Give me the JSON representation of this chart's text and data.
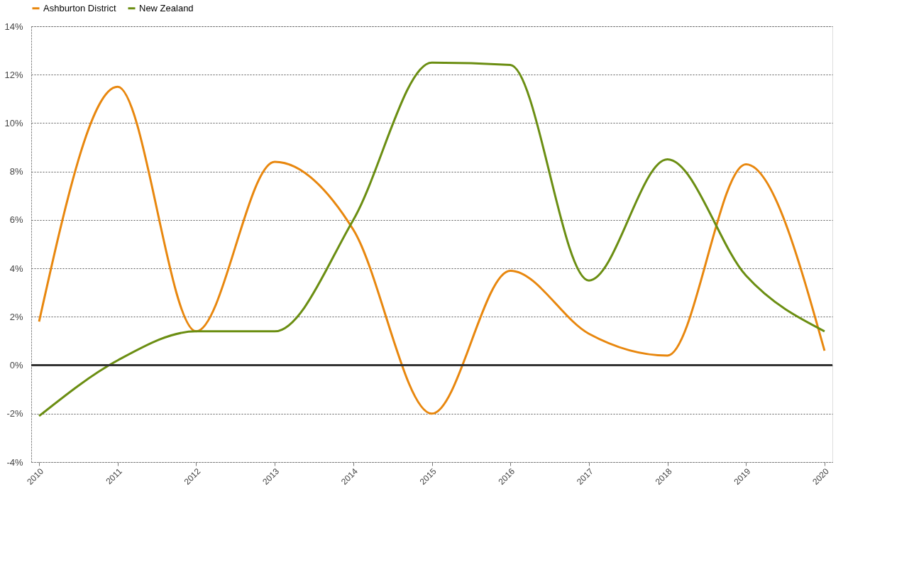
{
  "chart_data": {
    "type": "line",
    "categories": [
      "2010",
      "2011",
      "2012",
      "2013",
      "2014",
      "2015",
      "2016",
      "2017",
      "2018",
      "2019",
      "2020"
    ],
    "series": [
      {
        "name": "Ashburton District",
        "color": "#e8870e",
        "values": [
          1.8,
          11.5,
          1.4,
          8.4,
          5.6,
          -2.0,
          3.9,
          1.3,
          0.4,
          8.3,
          0.6
        ]
      },
      {
        "name": "New Zealand",
        "color": "#6b8e12",
        "values": [
          -2.1,
          0.2,
          1.4,
          1.4,
          6.0,
          12.5,
          12.4,
          3.5,
          8.5,
          3.7,
          1.4
        ]
      }
    ],
    "ylim": [
      -4,
      14
    ],
    "yticks": [
      {
        "value": -4,
        "label": "-4%"
      },
      {
        "value": -2,
        "label": "-2%"
      },
      {
        "value": 0,
        "label": "0%"
      },
      {
        "value": 2,
        "label": "2%"
      },
      {
        "value": 4,
        "label": "4%"
      },
      {
        "value": 6,
        "label": "6%"
      },
      {
        "value": 8,
        "label": "8%"
      },
      {
        "value": 10,
        "label": "10%"
      },
      {
        "value": 12,
        "label": "12%"
      },
      {
        "value": 14,
        "label": "14%"
      }
    ],
    "ref_lines": [
      {
        "axis": "y",
        "value": 0,
        "color": "#333333"
      }
    ],
    "grid": "y",
    "legend": "top",
    "marker": "none",
    "line_style": "solid"
  }
}
